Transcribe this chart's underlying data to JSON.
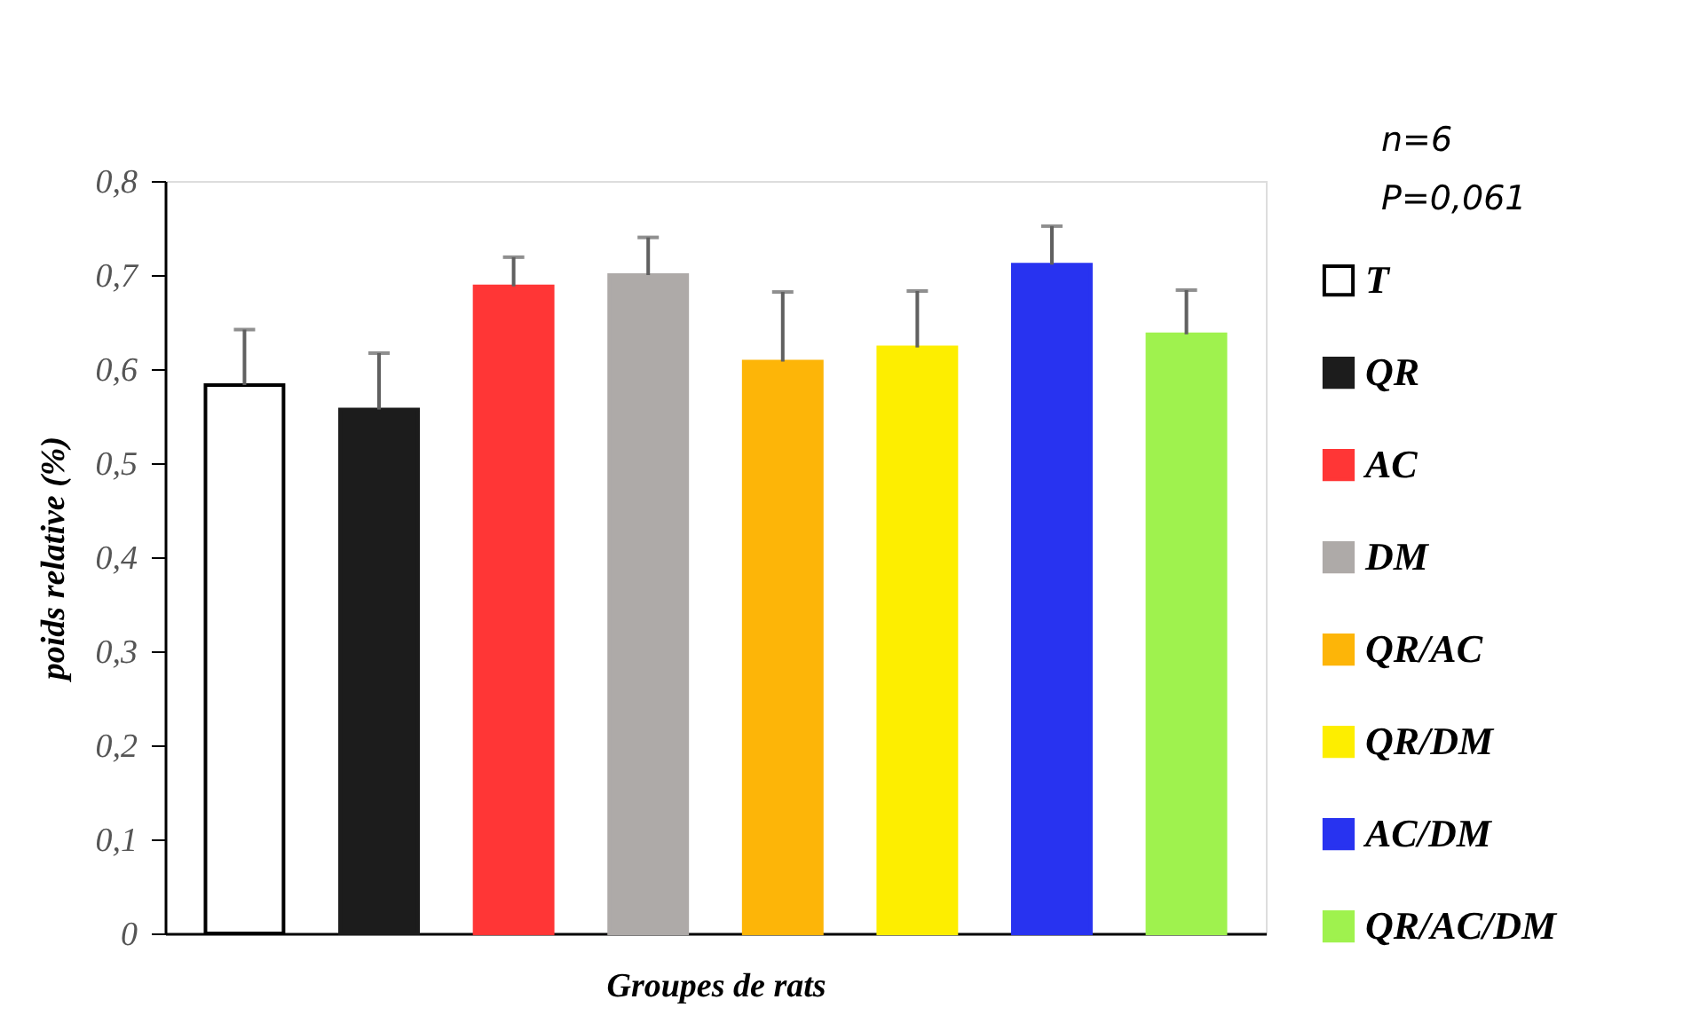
{
  "chart_data": {
    "type": "bar",
    "xlabel": "Groupes de rats",
    "ylabel": "poids relative (%)",
    "categories": [
      null,
      null,
      null,
      null,
      null,
      null,
      null,
      null
    ],
    "series": [
      {
        "name": "T",
        "color": "#ffffff",
        "values": [
          0.583,
          null,
          null,
          null,
          null,
          null,
          null,
          null
        ],
        "errors": [
          0.059,
          null,
          null,
          null,
          null,
          null,
          null,
          null
        ]
      },
      {
        "name": "QR",
        "color": "#1c1c1c",
        "values": [
          null,
          0.557,
          null,
          null,
          null,
          null,
          null,
          null
        ],
        "errors": [
          null,
          0.06,
          null,
          null,
          null,
          null,
          null,
          null
        ]
      },
      {
        "name": "AC",
        "color": "#ff3636",
        "values": [
          null,
          null,
          0.688,
          null,
          null,
          null,
          null,
          null
        ],
        "errors": [
          null,
          null,
          0.031,
          null,
          null,
          null,
          null,
          null
        ]
      },
      {
        "name": "DM",
        "color": "#aeaaa8",
        "values": [
          null,
          null,
          null,
          0.7,
          null,
          null,
          null,
          null
        ],
        "errors": [
          null,
          null,
          null,
          0.04,
          null,
          null,
          null,
          null
        ]
      },
      {
        "name": "QR/AC",
        "color": "#fdb508",
        "values": [
          null,
          null,
          null,
          null,
          0.608,
          null,
          null,
          null
        ],
        "errors": [
          null,
          null,
          null,
          null,
          0.074,
          null,
          null,
          null
        ]
      },
      {
        "name": "QR/DM",
        "color": "#fdee00",
        "values": [
          null,
          null,
          null,
          null,
          null,
          0.623,
          null,
          null
        ],
        "errors": [
          null,
          null,
          null,
          null,
          null,
          0.06,
          null,
          null
        ]
      },
      {
        "name": "AC/DM",
        "color": "#2833f0",
        "values": [
          null,
          null,
          null,
          null,
          null,
          null,
          0.711,
          null
        ],
        "errors": [
          null,
          null,
          null,
          null,
          null,
          null,
          0.041,
          null
        ]
      },
      {
        "name": "QR/AC/DM",
        "color": "#9ff24e",
        "values": [
          null,
          null,
          null,
          null,
          null,
          null,
          null,
          0.637
        ],
        "errors": [
          null,
          null,
          null,
          null,
          null,
          null,
          null,
          0.047
        ]
      }
    ],
    "ylim": [
      0,
      0.8
    ],
    "yticks": [
      {
        "value": 0,
        "label": "0"
      },
      {
        "value": 0.1,
        "label": "0,1"
      },
      {
        "value": 0.2,
        "label": "0,2"
      },
      {
        "value": 0.3,
        "label": "0,3"
      },
      {
        "value": 0.4,
        "label": "0,4"
      },
      {
        "value": 0.5,
        "label": "0,5"
      },
      {
        "value": 0.6,
        "label": "0,6"
      },
      {
        "value": 0.7,
        "label": "0,7"
      },
      {
        "value": 0.8,
        "label": "0,8"
      }
    ],
    "annotations": [
      "n=6",
      "P=0,061"
    ],
    "legend": "right",
    "grid": false
  }
}
